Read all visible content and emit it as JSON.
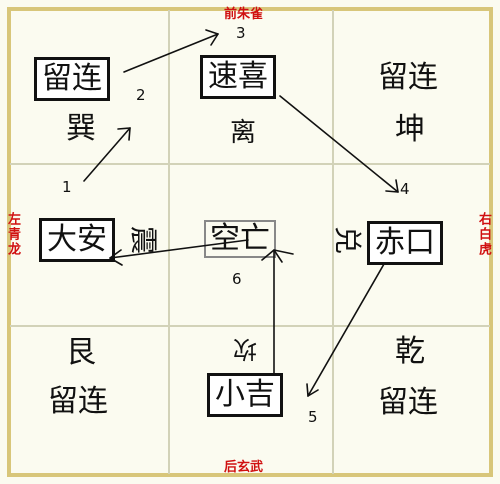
{
  "labels": {
    "top": "前朱雀",
    "bottom": "后玄武",
    "left": "左青龙",
    "right": "右白虎"
  },
  "cells": {
    "top_left": {
      "stage": "留连",
      "trigram": "巽"
    },
    "top_center": {
      "stage": "速喜",
      "trigram": "离"
    },
    "top_right": {
      "stage": "留连",
      "trigram": "坤"
    },
    "mid_left": {
      "stage": "大安",
      "trigram": "震"
    },
    "center": {
      "stage": "空亡"
    },
    "mid_right": {
      "stage": "赤口",
      "trigram": "兑"
    },
    "bottom_left": {
      "stage": "留连",
      "trigram": "艮"
    },
    "bottom_center": {
      "stage": "小吉",
      "trigram": "坎"
    },
    "bottom_right": {
      "stage": "留连",
      "trigram": "乾"
    }
  },
  "steps": [
    "1",
    "2",
    "3",
    "4",
    "5",
    "6"
  ],
  "colors": {
    "frame": "#d8c67a",
    "grid": "#d2d2b8",
    "accent_red": "#d01010"
  }
}
